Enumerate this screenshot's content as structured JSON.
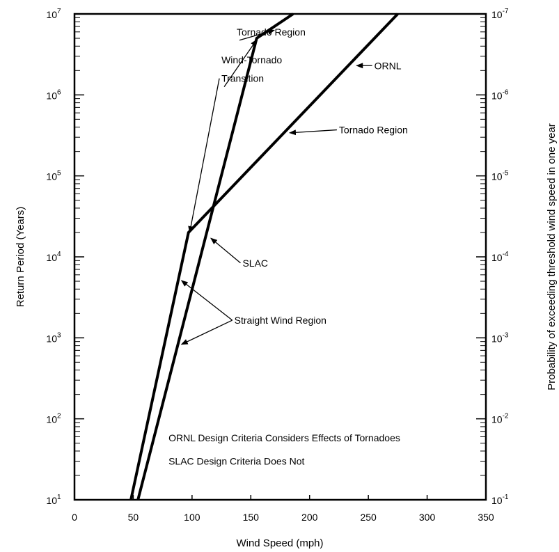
{
  "chart_data": {
    "type": "line",
    "xlabel": "Wind Speed (mph)",
    "ylabel": "Return Period (Years)",
    "y2label": "Probability of exceeding threshold wind speed in one year",
    "xlim": [
      0,
      350
    ],
    "ylim": [
      10,
      10000000
    ],
    "yscale": "log",
    "grid": false,
    "x_ticks": [
      "0",
      "50",
      "100",
      "150",
      "200",
      "250",
      "300",
      "350"
    ],
    "y_ticks": [
      {
        "base": "10",
        "exp": "1"
      },
      {
        "base": "10",
        "exp": "2"
      },
      {
        "base": "10",
        "exp": "3"
      },
      {
        "base": "10",
        "exp": "4"
      },
      {
        "base": "10",
        "exp": "5"
      },
      {
        "base": "10",
        "exp": "6"
      },
      {
        "base": "10",
        "exp": "7"
      }
    ],
    "y2_ticks": [
      {
        "base": "10",
        "exp": "-1"
      },
      {
        "base": "10",
        "exp": "-2"
      },
      {
        "base": "10",
        "exp": "-3"
      },
      {
        "base": "10",
        "exp": "-4"
      },
      {
        "base": "10",
        "exp": "-5"
      },
      {
        "base": "10",
        "exp": "-6"
      },
      {
        "base": "10",
        "exp": "-7"
      }
    ],
    "series": [
      {
        "name": "ORNL",
        "points": [
          [
            48,
            10
          ],
          [
            97,
            20000
          ],
          [
            275,
            10000000
          ]
        ]
      },
      {
        "name": "SLAC",
        "points": [
          [
            54,
            10
          ],
          [
            155,
            5000000
          ],
          [
            186,
            10000000
          ]
        ]
      }
    ],
    "annotations": [
      {
        "text": "Tornado Region",
        "label_at": [
          138,
          6000000
        ],
        "targets": [
          [
            170,
            6300000
          ]
        ]
      },
      {
        "text": "Wind-Tornado",
        "label_at": [
          125,
          2700000
        ],
        "targets": []
      },
      {
        "text": "Transition",
        "label_at": [
          125,
          1600000
        ],
        "targets": [
          [
            155,
            4800000
          ],
          [
            98,
            20000
          ]
        ]
      },
      {
        "text": "ORNL",
        "label_at": [
          255,
          2300000
        ],
        "targets": [
          [
            240,
            2300000
          ]
        ]
      },
      {
        "text": "Tornado Region",
        "label_at": [
          225,
          370000
        ],
        "targets": [
          [
            183,
            340000
          ]
        ]
      },
      {
        "text": "SLAC",
        "label_at": [
          143,
          8400
        ],
        "targets": [
          [
            116,
            17000
          ]
        ]
      },
      {
        "text": "Straight Wind Region",
        "label_at": [
          136,
          1650
        ],
        "targets": [
          [
            91,
            5100
          ],
          [
            91,
            830
          ]
        ]
      },
      {
        "text": "ORNL Design Criteria Considers Effects of Tornadoes",
        "label_at": [
          80,
          58
        ],
        "targets": []
      },
      {
        "text": "SLAC Design Criteria Does Not",
        "label_at": [
          80,
          30
        ],
        "targets": []
      }
    ]
  }
}
